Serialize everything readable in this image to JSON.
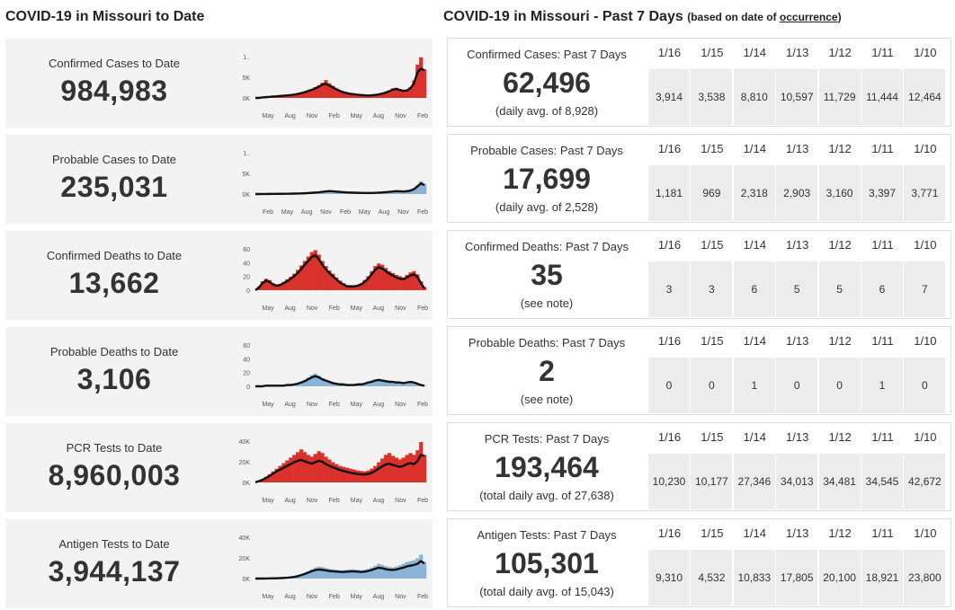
{
  "left_heading": "COVID-19 in Missouri to Date",
  "right_heading": "COVID-19 in Missouri - Past 7 Days",
  "right_heading_note_prefix": "(based on date of ",
  "right_heading_note_link": "occurrence",
  "right_heading_note_suffix": ")",
  "colors": {
    "red": "#d9312b",
    "blue": "#8ab3d6",
    "line": "#111111",
    "card_bg": "#f3f3f3",
    "cell_bg": "#ececec"
  },
  "to_date": [
    {
      "title": "Confirmed Cases to Date",
      "value": "984,983"
    },
    {
      "title": "Probable Cases to Date",
      "value": "235,031"
    },
    {
      "title": "Confirmed Deaths to Date",
      "value": "13,662"
    },
    {
      "title": "Probable Deaths to Date",
      "value": "3,106"
    },
    {
      "title": "PCR Tests to Date",
      "value": "8,960,003"
    },
    {
      "title": "Antigen Tests to Date",
      "value": "3,944,137"
    }
  ],
  "past_7_days": {
    "dates": [
      "1/16",
      "1/15",
      "1/14",
      "1/13",
      "1/12",
      "1/11",
      "1/10"
    ],
    "rows": [
      {
        "title": "Confirmed Cases: Past 7 Days",
        "total": "62,496",
        "note": "(daily avg. of 8,928)",
        "values": [
          "3,914",
          "3,538",
          "8,810",
          "10,597",
          "11,729",
          "11,444",
          "12,464"
        ]
      },
      {
        "title": "Probable Cases: Past 7 Days",
        "total": "17,699",
        "note": "(daily avg. of 2,528)",
        "values": [
          "1,181",
          "969",
          "2,318",
          "2,903",
          "3,160",
          "3,397",
          "3,771"
        ]
      },
      {
        "title": "Confirmed Deaths: Past 7 Days",
        "total": "35",
        "note": "(see note)",
        "values": [
          "3",
          "3",
          "6",
          "5",
          "5",
          "6",
          "7"
        ]
      },
      {
        "title": "Probable Deaths: Past 7 Days",
        "total": "2",
        "note": "(see note)",
        "values": [
          "0",
          "0",
          "1",
          "0",
          "0",
          "1",
          "0"
        ]
      },
      {
        "title": "PCR Tests: Past 7 Days",
        "total": "193,464",
        "note": "(total daily avg. of 27,638)",
        "values": [
          "10,230",
          "10,177",
          "27,346",
          "34,013",
          "34,481",
          "34,545",
          "42,672"
        ]
      },
      {
        "title": "Antigen Tests: Past 7 Days",
        "total": "105,301",
        "note": "(total daily avg. of 15,043)",
        "values": [
          "9,310",
          "4,532",
          "10,833",
          "17,805",
          "20,100",
          "18,921",
          "23,800"
        ]
      }
    ]
  },
  "chart_data": [
    {
      "type": "area",
      "title": "",
      "color": "red",
      "yticks": [
        "1..",
        "5K",
        "0K"
      ],
      "xticks": [
        "May",
        "Aug",
        "Nov",
        "Feb",
        "May",
        "Aug",
        "Nov",
        "Feb"
      ],
      "ylim": [
        0,
        13000
      ],
      "bars": [
        0,
        0,
        200,
        300,
        400,
        500,
        600,
        700,
        800,
        900,
        1000,
        1200,
        1400,
        1700,
        2000,
        2400,
        2800,
        3400,
        4000,
        4800,
        5600,
        4600,
        3800,
        3000,
        2400,
        2000,
        1700,
        1500,
        1300,
        1100,
        1000,
        900,
        800,
        900,
        1000,
        1200,
        1500,
        1900,
        2400,
        3000,
        3200,
        2800,
        2400,
        2600,
        3400,
        5500,
        10500,
        12800,
        9000
      ],
      "line": [
        0,
        0,
        150,
        250,
        350,
        450,
        500,
        600,
        700,
        800,
        900,
        1050,
        1250,
        1500,
        1800,
        2200,
        2500,
        3000,
        3500,
        4200,
        4400,
        3900,
        3300,
        2700,
        2200,
        1800,
        1500,
        1300,
        1150,
        1000,
        900,
        820,
        760,
        820,
        950,
        1100,
        1350,
        1700,
        2100,
        2600,
        2800,
        2500,
        2200,
        2350,
        3000,
        4500,
        8000,
        9200,
        8700
      ]
    },
    {
      "type": "area",
      "title": "",
      "color": "blue",
      "yticks": [
        "1..",
        "5K",
        "0K"
      ],
      "xticks": [
        "Feb",
        "May",
        "Aug",
        "Nov",
        "Feb",
        "May",
        "Aug",
        "Nov",
        "Feb"
      ],
      "ylim": [
        0,
        12000
      ],
      "bars": [
        0,
        0,
        20,
        30,
        40,
        50,
        60,
        70,
        80,
        100,
        120,
        150,
        180,
        210,
        260,
        320,
        400,
        480,
        560,
        700,
        900,
        1000,
        900,
        800,
        700,
        600,
        520,
        470,
        430,
        390,
        360,
        340,
        320,
        340,
        380,
        430,
        500,
        600,
        700,
        800,
        900,
        850,
        800,
        900,
        1100,
        1600,
        2600,
        3700,
        3000
      ],
      "line": [
        0,
        0,
        15,
        25,
        35,
        45,
        55,
        65,
        75,
        90,
        110,
        130,
        160,
        190,
        230,
        290,
        360,
        430,
        500,
        620,
        780,
        860,
        800,
        710,
        620,
        540,
        470,
        430,
        390,
        360,
        330,
        310,
        300,
        320,
        350,
        400,
        460,
        550,
        640,
        730,
        820,
        790,
        740,
        820,
        1000,
        1400,
        2200,
        3100,
        2600
      ]
    },
    {
      "type": "area",
      "title": "",
      "color": "red",
      "yticks": [
        "60",
        "40",
        "20",
        "0"
      ],
      "xticks": [
        "May",
        "Aug",
        "Nov",
        "Feb",
        "May",
        "Aug",
        "Nov",
        "Feb"
      ],
      "ylim": [
        0,
        65
      ],
      "bars": [
        0,
        6,
        14,
        18,
        16,
        11,
        9,
        10,
        13,
        17,
        21,
        26,
        32,
        39,
        46,
        53,
        60,
        63,
        56,
        46,
        38,
        31,
        26,
        20,
        15,
        11,
        8,
        7,
        7,
        8,
        11,
        16,
        22,
        30,
        38,
        42,
        40,
        35,
        30,
        27,
        24,
        22,
        20,
        24,
        28,
        30,
        25,
        14,
        5
      ],
      "line": [
        0,
        4,
        11,
        15,
        13,
        9,
        7,
        8,
        11,
        14,
        18,
        22,
        27,
        33,
        40,
        46,
        52,
        55,
        49,
        40,
        33,
        27,
        22,
        17,
        12,
        9,
        6,
        6,
        6,
        7,
        9,
        13,
        18,
        25,
        32,
        36,
        34,
        30,
        26,
        23,
        20,
        18,
        17,
        20,
        23,
        25,
        21,
        11,
        3
      ]
    },
    {
      "type": "area",
      "title": "",
      "color": "blue",
      "yticks": [
        "60",
        "40",
        "20",
        "0"
      ],
      "xticks": [
        "May",
        "Aug",
        "Nov",
        "Feb",
        "May",
        "Aug",
        "Nov",
        "Feb"
      ],
      "ylim": [
        0,
        65
      ],
      "bars": [
        0,
        0,
        0,
        1,
        1,
        1,
        1,
        1,
        2,
        2,
        3,
        4,
        5,
        7,
        10,
        14,
        18,
        20,
        17,
        13,
        10,
        8,
        6,
        5,
        4,
        3,
        3,
        3,
        3,
        3,
        4,
        5,
        7,
        9,
        11,
        12,
        11,
        10,
        9,
        8,
        7,
        7,
        6,
        7,
        8,
        7,
        5,
        3,
        1
      ],
      "line": [
        0,
        0,
        0,
        1,
        1,
        1,
        1,
        1,
        1,
        2,
        2,
        3,
        4,
        6,
        8,
        11,
        14,
        16,
        14,
        11,
        9,
        7,
        5,
        4,
        3,
        3,
        2,
        2,
        2,
        3,
        3,
        4,
        6,
        7,
        9,
        10,
        9,
        8,
        7,
        7,
        6,
        6,
        5,
        6,
        7,
        6,
        4,
        2,
        1
      ]
    },
    {
      "type": "area",
      "title": "",
      "color": "red",
      "yticks": [
        "40K",
        "20K",
        "0K"
      ],
      "xticks": [
        "May",
        "Aug",
        "Nov",
        "Feb",
        "May",
        "Aug",
        "Nov",
        "Feb"
      ],
      "ylim": [
        0,
        45000
      ],
      "bars": [
        0,
        2000,
        3500,
        6000,
        9000,
        12000,
        15000,
        18000,
        21000,
        24000,
        27000,
        30000,
        33000,
        36000,
        33000,
        30000,
        28000,
        31000,
        34000,
        32000,
        28000,
        25000,
        22000,
        20000,
        18000,
        17000,
        16000,
        15000,
        14000,
        13000,
        12500,
        12000,
        13000,
        15000,
        18000,
        22000,
        26000,
        30000,
        32000,
        29000,
        27000,
        25000,
        27000,
        30000,
        32000,
        30000,
        35000,
        44000,
        30000
      ],
      "line": [
        0,
        1500,
        2800,
        4800,
        7000,
        9500,
        12000,
        14000,
        16000,
        18000,
        20000,
        22000,
        23500,
        24500,
        23000,
        21500,
        20500,
        22000,
        23500,
        22500,
        20000,
        18000,
        16500,
        15000,
        13500,
        12500,
        11500,
        10500,
        9800,
        9200,
        8800,
        8600,
        9200,
        10500,
        12500,
        15000,
        17500,
        19500,
        20500,
        19000,
        18000,
        17000,
        18000,
        20000,
        21000,
        20000,
        23000,
        30000,
        29000
      ]
    },
    {
      "type": "area",
      "title": "",
      "color": "blue",
      "yticks": [
        "40K",
        "20K",
        "0K"
      ],
      "xticks": [
        "May",
        "Aug",
        "Nov",
        "Feb",
        "May",
        "Aug",
        "Nov",
        "Feb"
      ],
      "ylim": [
        0,
        45000
      ],
      "bars": [
        0,
        0,
        0,
        100,
        200,
        300,
        400,
        600,
        800,
        1000,
        1500,
        2000,
        3000,
        4500,
        6000,
        8000,
        10000,
        12000,
        13000,
        12500,
        11500,
        10500,
        10000,
        9500,
        9000,
        9000,
        9500,
        10000,
        10000,
        9500,
        9000,
        9500,
        10500,
        12000,
        14000,
        16000,
        15000,
        13500,
        12500,
        12000,
        13000,
        14500,
        16000,
        18000,
        19000,
        20000,
        22000,
        26000,
        18000
      ],
      "line": [
        0,
        0,
        0,
        80,
        150,
        250,
        350,
        500,
        700,
        900,
        1300,
        1800,
        2600,
        3800,
        5000,
        6500,
        8000,
        9200,
        9800,
        9500,
        8900,
        8300,
        7900,
        7600,
        7300,
        7200,
        7500,
        7800,
        7800,
        7500,
        7200,
        7500,
        8300,
        9300,
        10600,
        11800,
        11200,
        10200,
        9600,
        9300,
        9900,
        10900,
        11900,
        13200,
        14000,
        14800,
        16000,
        19000,
        16500
      ]
    }
  ]
}
